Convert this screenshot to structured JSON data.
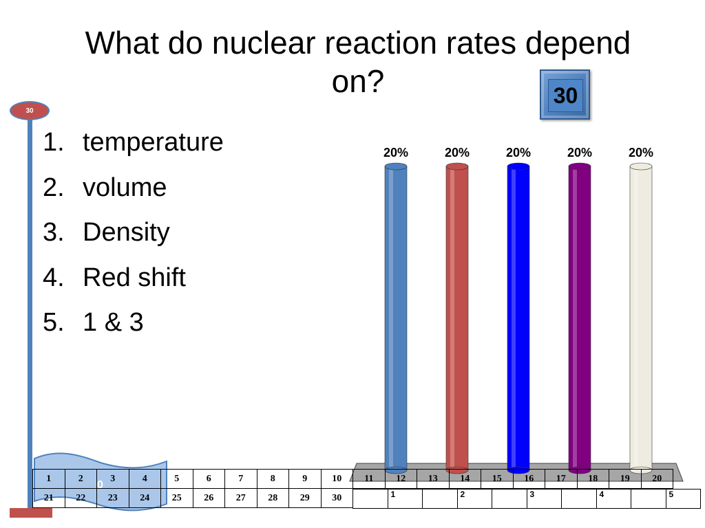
{
  "slide": {
    "question": "What do nuclear reaction rates depend on?",
    "countdown_value": "30",
    "countdown_badge": "30",
    "flag_text": "0"
  },
  "answers": [
    {
      "num": "1.",
      "text": "temperature"
    },
    {
      "num": "2.",
      "text": "volume"
    },
    {
      "num": "3.",
      "text": "Density"
    },
    {
      "num": "4.",
      "text": "Red shift"
    },
    {
      "num": "5.",
      "text": "1 & 3"
    }
  ],
  "colors": {
    "series": [
      "#4f81bd",
      "#c0504d",
      "#0000ff",
      "#800080",
      "#eeece1"
    ],
    "pole": "#4f81bd",
    "badge": "#c0504d"
  },
  "chart_data": {
    "type": "bar",
    "categories": [
      "1",
      "2",
      "3",
      "4",
      "5"
    ],
    "values": [
      20,
      20,
      20,
      20,
      20
    ],
    "data_labels": [
      "20%",
      "20%",
      "20%",
      "20%",
      "20%"
    ],
    "ylim": [
      0,
      20
    ],
    "title": "",
    "xlabel": "",
    "ylabel": "",
    "grid": false
  },
  "response_grid": {
    "row1": [
      "1",
      "2",
      "3",
      "4",
      "5",
      "6",
      "7",
      "8",
      "9",
      "10",
      "11",
      "12",
      "13",
      "14",
      "15",
      "16",
      "17",
      "18",
      "19",
      "20"
    ],
    "row2": [
      "21",
      "22",
      "23",
      "24",
      "25",
      "26",
      "27",
      "28",
      "29",
      "30"
    ],
    "answer_labels": [
      "1",
      "2",
      "3",
      "4",
      "5"
    ]
  }
}
